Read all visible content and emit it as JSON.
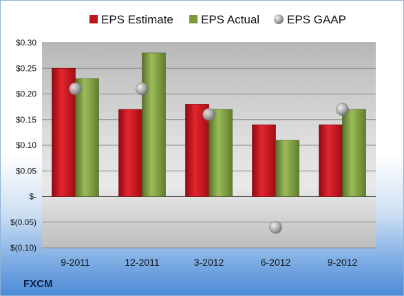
{
  "ticker": "FXCM",
  "chart_data": {
    "type": "bar",
    "categories": [
      "9-2011",
      "12-2011",
      "3-2012",
      "6-2012",
      "9-2012"
    ],
    "series": [
      {
        "name": "EPS Estimate",
        "kind": "bar",
        "color": "#c0141c",
        "values": [
          0.25,
          0.17,
          0.18,
          0.14,
          0.14
        ]
      },
      {
        "name": "EPS Actual",
        "kind": "bar",
        "color": "#7a9a3a",
        "values": [
          0.23,
          0.28,
          0.17,
          0.11,
          0.17
        ]
      },
      {
        "name": "EPS GAAP",
        "kind": "scatter",
        "color": "#a8a8a8",
        "values": [
          0.21,
          0.21,
          0.16,
          -0.06,
          0.17
        ]
      }
    ],
    "ylim": [
      -0.1,
      0.3
    ],
    "yticks": [
      0.3,
      0.25,
      0.2,
      0.15,
      0.1,
      0.05,
      0.0,
      -0.05,
      -0.1
    ],
    "ytick_labels": [
      "$0.30",
      "$0.25",
      "$0.20",
      "$0.15",
      "$0.10",
      "$0.05",
      "$-",
      "$(0.05)",
      "$(0.10)"
    ],
    "grid": true,
    "legend": "top"
  }
}
